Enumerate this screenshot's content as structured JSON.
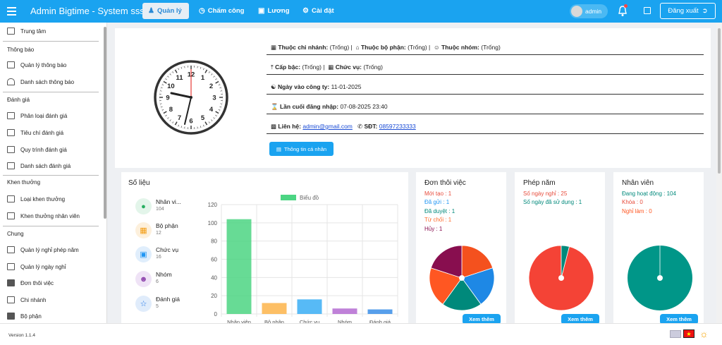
{
  "header": {
    "title": "Admin Bigtime - System sss",
    "tabs": [
      {
        "label": "Quản lý",
        "icon": "user-tie-icon",
        "active": true
      },
      {
        "label": "Chấm công",
        "icon": "clock-icon",
        "active": false
      },
      {
        "label": "Lương",
        "icon": "wallet-icon",
        "active": false
      },
      {
        "label": "Cài đặt",
        "icon": "settings-icon",
        "active": false
      }
    ],
    "username": "admin",
    "logout_label": "Đăng xuất",
    "accent": "#1aa3f0"
  },
  "sidebar": {
    "top_item": "Trung tâm",
    "sections": [
      {
        "title": "Thông báo",
        "items": [
          "Quản lý thông báo",
          "Danh sách thông báo"
        ]
      },
      {
        "title": "Đánh giá",
        "items": [
          "Phân loại đánh giá",
          "Tiêu chí đánh giá",
          "Quy trình đánh giá",
          "Danh sách đánh giá"
        ]
      },
      {
        "title": "Khen thưởng",
        "items": [
          "Loại khen thưởng",
          "Khen thưởng nhân viên"
        ]
      },
      {
        "title": "Chung",
        "items": [
          "Quản lý nghỉ phép năm",
          "Quản lý ngày nghỉ",
          "Đơn thôi việc",
          "Chi nhánh",
          "Bộ phận"
        ]
      }
    ]
  },
  "profile": {
    "branch_label": "Thuộc chi nhánh:",
    "branch_value": "(Trống) |",
    "dept_label": "Thuộc bộ phận:",
    "dept_value": "(Trống) |",
    "group_label": "Thuộc nhóm:",
    "group_value": "(Trống)",
    "level_label": "Cấp bậc:",
    "level_value": "(Trống) |",
    "position_label": "Chức vụ:",
    "position_value": "(Trống)",
    "join_label": "Ngày vào công ty:",
    "join_value": "11-01-2025",
    "last_login_label": "Lần cuối đăng nhập:",
    "last_login_value": "07-08-2025 23:40",
    "contact_label": "Liên hệ:",
    "email": "admin@gmail.com",
    "phone_label": "SĐT:",
    "phone": "08597233333",
    "info_button": "Thông tin cá nhân",
    "clock_numbers": [
      "12",
      "1",
      "2",
      "3",
      "4",
      "5",
      "6",
      "7",
      "8",
      "9",
      "10",
      "11"
    ]
  },
  "stats": {
    "title": "Số liệu",
    "items": [
      {
        "label": "Nhân vi...",
        "value": "104",
        "icon": "user-icon",
        "color": "#27ae60",
        "bg": "#e3f5ea"
      },
      {
        "label": "Bộ phận",
        "value": "12",
        "icon": "building-icon",
        "color": "#f39c12",
        "bg": "#fdf0dc"
      },
      {
        "label": "Chức vụ",
        "value": "16",
        "icon": "briefcase-icon",
        "color": "#2196f3",
        "bg": "#e0eefc"
      },
      {
        "label": "Nhóm",
        "value": "6",
        "icon": "group-icon",
        "color": "#8e44ad",
        "bg": "#efe3f6"
      },
      {
        "label": "Đánh giá",
        "value": "5",
        "icon": "star-icon",
        "color": "#1a73e8",
        "bg": "#e0ecfb"
      }
    ]
  },
  "chart_data": {
    "type": "bar",
    "legend": "Biểu đồ",
    "categories": [
      "Nhân viên",
      "Bộ phận",
      "Chức vụ",
      "Nhóm",
      "Đánh giá"
    ],
    "values": [
      104,
      12,
      16,
      6,
      5
    ],
    "colors": [
      "#4cd583",
      "#fdb44a",
      "#3aaef5",
      "#b46bd1",
      "#3a8ee8"
    ],
    "yticks": [
      "0",
      "20",
      "40",
      "60",
      "80",
      "100",
      "120"
    ],
    "ylim": [
      0,
      120
    ],
    "grid": true,
    "legend_position": "top"
  },
  "resign": {
    "title": "Đơn thôi việc",
    "lines": [
      {
        "text": "Mới tạo : 1",
        "color": "#e74c3c"
      },
      {
        "text": "Đã gửi : 1",
        "color": "#2196f3"
      },
      {
        "text": "Đã duyệt : 1",
        "color": "#00897b"
      },
      {
        "text": "Từ chối : 1",
        "color": "#ff6d2e"
      },
      {
        "text": "Hủy : 1",
        "color": "#880e4f"
      }
    ],
    "slices": [
      {
        "value": 1,
        "color": "#f4511e"
      },
      {
        "value": 1,
        "color": "#1e88e5"
      },
      {
        "value": 1,
        "color": "#00897b"
      },
      {
        "value": 1,
        "color": "#ff5722"
      },
      {
        "value": 1,
        "color": "#880e4f"
      }
    ],
    "more": "Xem thêm"
  },
  "leave": {
    "title": "Phép năm",
    "lines": [
      {
        "text": "Số ngày nghỉ : 25",
        "color": "#e74c3c"
      },
      {
        "text": "Số ngày đã sử dụng : 1",
        "color": "#00897b"
      }
    ],
    "slices": [
      {
        "value": 24,
        "color": "#f44336"
      },
      {
        "value": 1,
        "color": "#00897b"
      }
    ],
    "more": "Xem thêm"
  },
  "employees": {
    "title": "Nhân viên",
    "lines": [
      {
        "text": "Đang hoạt động : 104",
        "color": "#00897b"
      },
      {
        "text": "Khóa : 0",
        "color": "#e74c3c"
      },
      {
        "text": "Nghỉ làm : 0",
        "color": "#ff5722"
      }
    ],
    "slices": [
      {
        "value": 104,
        "color": "#009688"
      }
    ],
    "more": "Xem thêm"
  },
  "footer": {
    "version": "Version 1.1.4"
  }
}
